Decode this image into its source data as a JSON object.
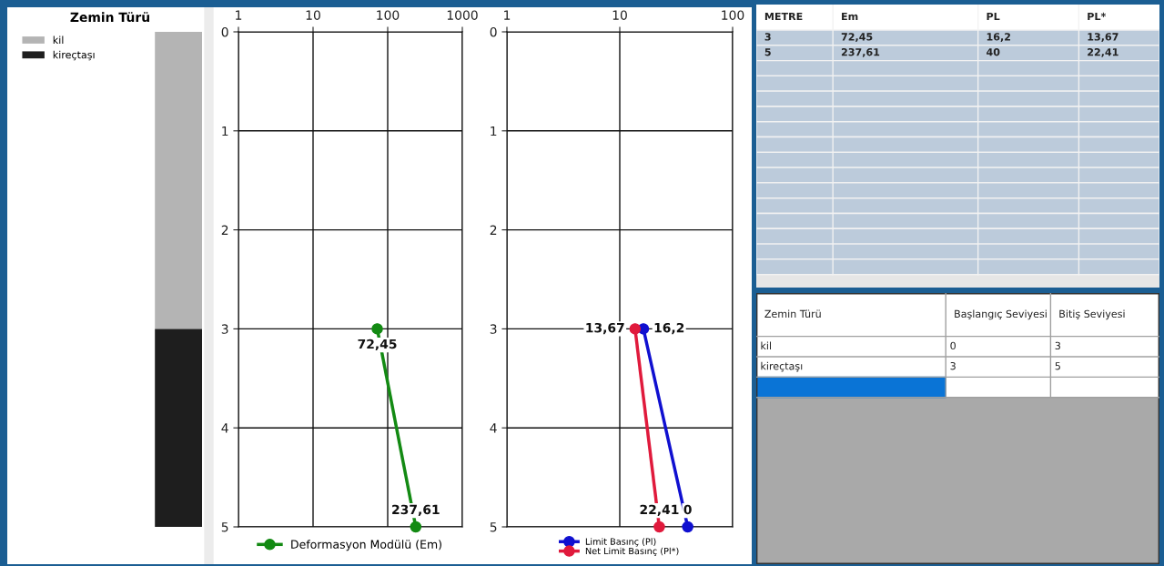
{
  "chart_data": [
    {
      "type": "bar",
      "title": "Zemin Türü",
      "stacked": true,
      "categories": [
        null
      ],
      "ylim": [
        5,
        0
      ],
      "tick_labels": false,
      "legend": "top left",
      "series": [
        {
          "name": "kil",
          "color": "#b4b4b4",
          "values": [
            3
          ]
        },
        {
          "name": "kireçtaşı",
          "color": "#1e1e1e",
          "values": [
            2
          ]
        }
      ]
    },
    {
      "type": "line",
      "log": "x",
      "xlim": [
        1,
        1000
      ],
      "xticks": [
        1,
        10,
        100,
        1000
      ],
      "ylim": [
        5,
        0
      ],
      "yticks": [
        0,
        1,
        2,
        3,
        4,
        5
      ],
      "grid": true,
      "legend": "bottom",
      "marker": "circle",
      "line_style": "solid",
      "series": [
        {
          "name": "Deformasyon Modülü (Em)",
          "color": "#138a13",
          "x": [
            72.45,
            237.61
          ],
          "values": [
            3,
            5
          ]
        }
      ],
      "annotations": [
        {
          "text": "72,45",
          "x": 72.45,
          "y": 3
        },
        {
          "text": "237,61",
          "x": 237.61,
          "y": 5
        }
      ]
    },
    {
      "type": "line",
      "log": "x",
      "xlim": [
        1,
        100
      ],
      "xticks": [
        1,
        10,
        100
      ],
      "ylim": [
        5,
        0
      ],
      "yticks": [
        0,
        1,
        2,
        3,
        4,
        5
      ],
      "grid": true,
      "legend": "bottom",
      "marker": "circle",
      "line_style": "solid",
      "series": [
        {
          "name": "Limit Basınç (Pl)",
          "color": "#1010d0",
          "x": [
            16.2,
            40
          ],
          "values": [
            3,
            5
          ]
        },
        {
          "name": "Net Limit Basınç (Pl*)",
          "color": "#e01a3c",
          "x": [
            13.67,
            22.41
          ],
          "values": [
            3,
            5
          ]
        }
      ],
      "annotations": [
        {
          "text": "16,2",
          "x": 16.2,
          "y": 3
        },
        {
          "text": "0",
          "x": 40,
          "y": 5
        },
        {
          "text": "13,67",
          "x": 13.67,
          "y": 3
        },
        {
          "text": "22,41",
          "x": 22.41,
          "y": 5
        }
      ]
    },
    {
      "type": "other",
      "categories": [
        "METRE",
        "Em",
        "PL",
        "PL*"
      ],
      "annotations": [
        "3",
        "72,45",
        "16,2",
        "13,67",
        "5",
        "237,61",
        "40",
        "22,41"
      ]
    },
    {
      "type": "other",
      "categories": [
        "Zemin Türü",
        "Başlangıç Seviyesi",
        "Bitiş Seviyesi"
      ],
      "annotations": [
        "kil",
        "0",
        "3",
        "kireçtaşı",
        "3",
        "5"
      ]
    }
  ]
}
